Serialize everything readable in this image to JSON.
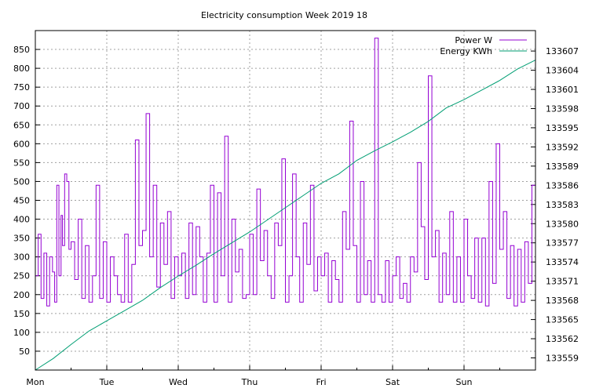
{
  "chart_data": {
    "type": "line",
    "title": "Electricity consumption Week 2019 18",
    "xlabel": "",
    "ylabel": "",
    "y2label": "",
    "x_ticks": [
      "Mon",
      "Tue",
      "Wed",
      "Thu",
      "Fri",
      "Sat",
      "Sun"
    ],
    "xlim": [
      0,
      7
    ],
    "y_ticks": [
      50,
      100,
      150,
      200,
      250,
      300,
      350,
      400,
      450,
      500,
      550,
      600,
      650,
      700,
      750,
      800,
      850
    ],
    "ylim": [
      0,
      900
    ],
    "y2_ticks": [
      133559,
      133562,
      133565,
      133568,
      133571,
      133574,
      133577,
      133580,
      133583,
      133586,
      133589,
      133592,
      133595,
      133598,
      133601,
      133604,
      133607
    ],
    "y2lim": [
      133557.1,
      133610.2
    ],
    "grid": true,
    "legend_position": "top-right",
    "colors": {
      "power": "#9400d3",
      "energy": "#009e73"
    },
    "series": [
      {
        "name": "Power W",
        "axis": "left",
        "x": [
          0,
          0.04,
          0.08,
          0.12,
          0.16,
          0.2,
          0.24,
          0.27,
          0.3,
          0.33,
          0.36,
          0.38,
          0.41,
          0.44,
          0.47,
          0.5,
          0.55,
          0.6,
          0.65,
          0.7,
          0.75,
          0.8,
          0.85,
          0.9,
          0.95,
          1.0,
          1.05,
          1.1,
          1.15,
          1.2,
          1.25,
          1.3,
          1.35,
          1.4,
          1.45,
          1.5,
          1.55,
          1.6,
          1.65,
          1.7,
          1.75,
          1.8,
          1.85,
          1.9,
          1.95,
          2.0,
          2.05,
          2.1,
          2.15,
          2.2,
          2.25,
          2.3,
          2.35,
          2.4,
          2.45,
          2.5,
          2.55,
          2.6,
          2.65,
          2.7,
          2.75,
          2.8,
          2.85,
          2.9,
          2.95,
          3.0,
          3.05,
          3.1,
          3.15,
          3.2,
          3.25,
          3.3,
          3.35,
          3.4,
          3.45,
          3.5,
          3.55,
          3.6,
          3.65,
          3.7,
          3.75,
          3.8,
          3.85,
          3.9,
          3.95,
          4.0,
          4.05,
          4.1,
          4.15,
          4.2,
          4.25,
          4.3,
          4.35,
          4.4,
          4.45,
          4.5,
          4.55,
          4.6,
          4.65,
          4.7,
          4.75,
          4.8,
          4.85,
          4.9,
          4.95,
          5.0,
          5.05,
          5.1,
          5.15,
          5.2,
          5.25,
          5.3,
          5.35,
          5.4,
          5.45,
          5.5,
          5.55,
          5.6,
          5.65,
          5.7,
          5.75,
          5.8,
          5.85,
          5.9,
          5.95,
          6.0,
          6.05,
          6.1,
          6.15,
          6.2,
          6.25,
          6.3,
          6.35,
          6.4,
          6.45,
          6.5,
          6.55,
          6.6,
          6.65,
          6.7,
          6.75,
          6.8,
          6.85,
          6.9,
          6.95,
          7.0
        ],
        "y": [
          250,
          360,
          190,
          310,
          170,
          300,
          260,
          180,
          490,
          250,
          410,
          330,
          520,
          500,
          320,
          340,
          240,
          400,
          190,
          330,
          180,
          250,
          490,
          190,
          340,
          180,
          300,
          250,
          200,
          180,
          360,
          180,
          280,
          610,
          330,
          370,
          680,
          300,
          490,
          220,
          390,
          280,
          420,
          190,
          300,
          250,
          310,
          190,
          390,
          200,
          380,
          300,
          180,
          310,
          490,
          180,
          470,
          250,
          620,
          180,
          400,
          260,
          320,
          190,
          200,
          360,
          200,
          480,
          290,
          370,
          250,
          190,
          390,
          330,
          560,
          180,
          250,
          520,
          300,
          180,
          390,
          280,
          490,
          210,
          300,
          250,
          310,
          180,
          290,
          240,
          180,
          420,
          320,
          660,
          330,
          180,
          500,
          200,
          290,
          180,
          880,
          200,
          180,
          290,
          180,
          250,
          300,
          190,
          230,
          180,
          300,
          260,
          550,
          380,
          240,
          780,
          300,
          370,
          180,
          310,
          200,
          420,
          180,
          300,
          180,
          400,
          250,
          190,
          350,
          180,
          350,
          170,
          500,
          230,
          600,
          320,
          420,
          190,
          330,
          170,
          320,
          180,
          340,
          230,
          490,
          380
        ],
        "x_step": [
          0,
          0.09,
          0.1,
          0.11,
          0.15,
          0.18,
          0.23,
          0.27,
          0.32,
          0.36,
          0.4,
          0.43,
          0.47,
          0.51
        ]
      },
      {
        "name": "Energy KWh",
        "axis": "right",
        "x": [
          0,
          0.25,
          0.5,
          0.75,
          1.0,
          1.25,
          1.5,
          1.75,
          2.0,
          2.25,
          2.5,
          2.75,
          3.0,
          3.25,
          3.5,
          3.75,
          4.0,
          4.25,
          4.5,
          4.75,
          5.0,
          5.25,
          5.5,
          5.75,
          6.0,
          6.25,
          6.5,
          6.75,
          7.0
        ],
        "y": [
          133557.1,
          133558.9,
          133561.1,
          133563.2,
          133564.8,
          133566.4,
          133568.0,
          133570.0,
          133571.8,
          133573.5,
          133575.3,
          133577.0,
          133578.7,
          133580.6,
          133582.5,
          133584.4,
          133586.3,
          133587.8,
          133589.9,
          133591.4,
          133592.8,
          133594.3,
          133596.0,
          133598.1,
          133599.4,
          133600.9,
          133602.4,
          133604.2,
          133605.6
        ]
      }
    ]
  }
}
